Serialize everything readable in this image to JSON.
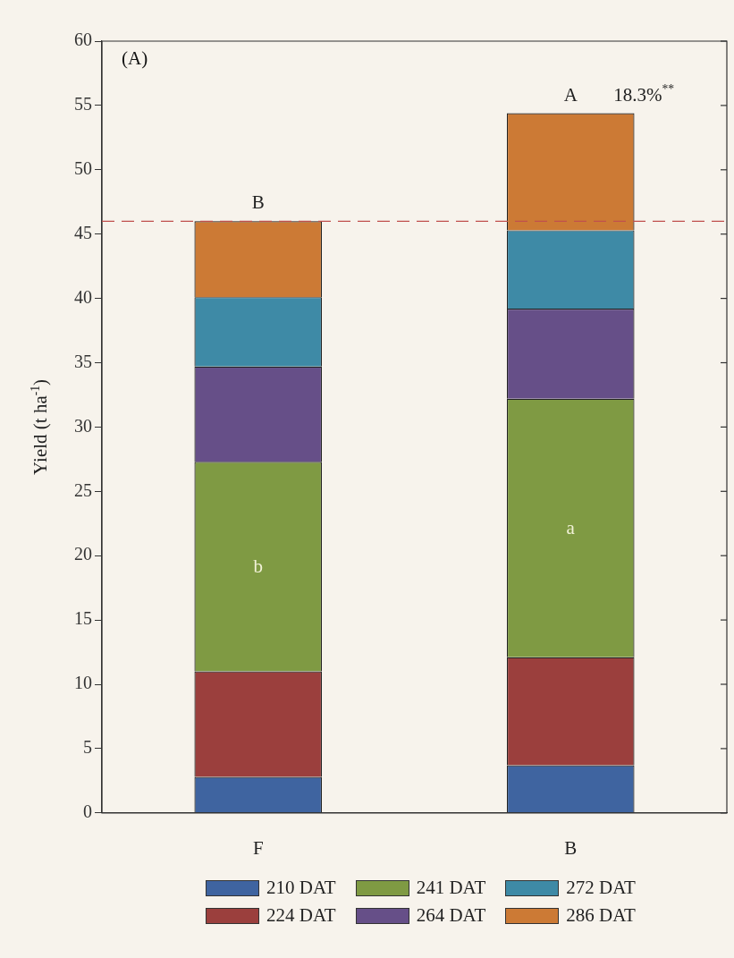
{
  "chart_data": {
    "type": "bar",
    "stacked": true,
    "ylabel": "Yield (t ha$^{-1}$)",
    "categories": [
      "F",
      "B"
    ],
    "series": [
      {
        "name": "210 DAT",
        "color": "#3f64a0",
        "values": [
          2.8,
          3.7
        ]
      },
      {
        "name": "224 DAT",
        "color": "#9b3f3d",
        "values": [
          8.2,
          8.4
        ]
      },
      {
        "name": "241 DAT",
        "color": "#7f9a43",
        "values": [
          16.3,
          20.1
        ]
      },
      {
        "name": "264 DAT",
        "color": "#664f88",
        "values": [
          7.4,
          7.0
        ]
      },
      {
        "name": "272 DAT",
        "color": "#3e8aa6",
        "values": [
          5.4,
          6.1
        ]
      },
      {
        "name": "286 DAT",
        "color": "#cc7a35",
        "values": [
          5.9,
          9.1
        ]
      }
    ],
    "ylim": [
      0,
      60
    ],
    "yticks": [
      0,
      5,
      10,
      15,
      20,
      25,
      30,
      35,
      40,
      45,
      50,
      55,
      60
    ],
    "grid": false,
    "legend": "bottom",
    "ref_lines": [
      {
        "axis": "y",
        "value": 46,
        "color": "#c0504d",
        "line_style": "dashed"
      }
    ],
    "annotations": [
      "(A)",
      {
        "text": "B",
        "x": "F",
        "y": 46
      },
      {
        "text": "A",
        "x": "B",
        "y": 54.4
      },
      {
        "text": "18.3%$^{**}$",
        "x": "B",
        "y": 54.4
      },
      "b",
      "a"
    ]
  }
}
